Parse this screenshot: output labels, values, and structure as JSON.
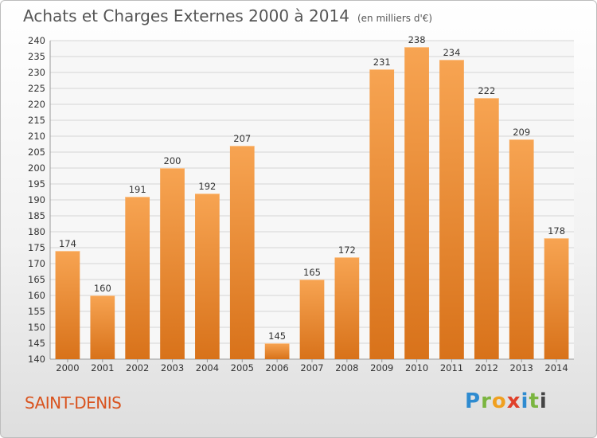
{
  "header": {
    "title": "Achats et Charges Externes 2000 à 2014",
    "subtitle": "(en milliers d'€)"
  },
  "place": "SAINT-DENIS",
  "brand": {
    "letters": [
      "P",
      "r",
      "o",
      "x",
      "i",
      "t",
      "i"
    ]
  },
  "colors": {
    "bar_top": "#f7a452",
    "bar_bottom": "#d8721a",
    "place": "#d9531e"
  },
  "chart_data": {
    "type": "bar",
    "title": "Achats et Charges Externes 2000 à 2014",
    "subtitle": "(en milliers d'€)",
    "categories": [
      "2000",
      "2001",
      "2002",
      "2003",
      "2004",
      "2005",
      "2006",
      "2007",
      "2008",
      "2009",
      "2010",
      "2011",
      "2012",
      "2013",
      "2014"
    ],
    "values": [
      174,
      160,
      191,
      200,
      192,
      207,
      145,
      165,
      172,
      231,
      238,
      234,
      222,
      209,
      178
    ],
    "ylim": [
      140,
      240
    ],
    "ytick_step": 5,
    "grid": true,
    "legend": "none"
  }
}
